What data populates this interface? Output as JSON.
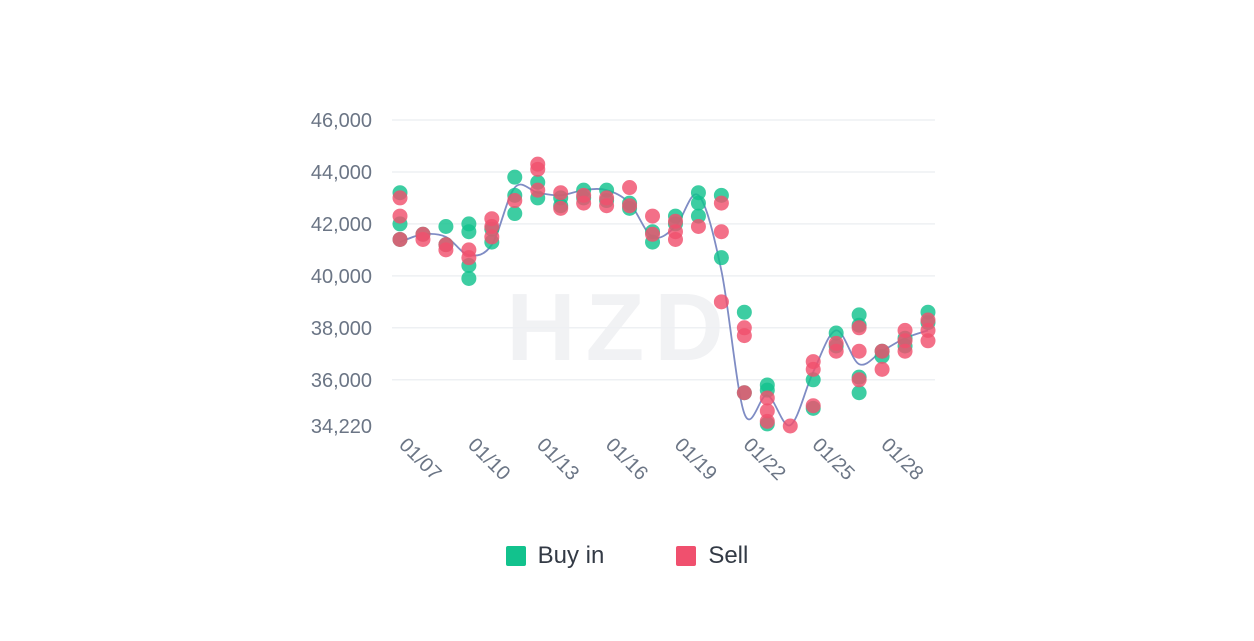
{
  "colors": {
    "buy": "#12c28d",
    "sell": "#f0506e",
    "trend": "#7f8cc4",
    "grid": "#eef0f3",
    "tick": "#6b7585"
  },
  "watermark": "HZD",
  "legend": [
    {
      "label": "Buy in",
      "color": "#12c28d"
    },
    {
      "label": "Sell",
      "color": "#f0506e"
    }
  ],
  "chart_data": {
    "type": "scatter",
    "y_ticks": [
      "46,000",
      "44,000",
      "42,000",
      "40,000",
      "38,000",
      "36,000",
      "34,220"
    ],
    "y_tick_values": [
      46000,
      44000,
      42000,
      40000,
      38000,
      36000,
      34220
    ],
    "ylim": [
      34220,
      46000
    ],
    "x_tick_labels": [
      "01/07",
      "01/10",
      "01/13",
      "01/16",
      "01/19",
      "01/22",
      "01/25",
      "01/28"
    ],
    "x_tick_days": [
      7,
      10,
      13,
      16,
      19,
      22,
      25,
      28
    ],
    "xlim": [
      7,
      30
    ],
    "grid": true,
    "legend_position": "bottom-center",
    "series": [
      {
        "name": "Buy in",
        "points": [
          [
            7,
            43200
          ],
          [
            7,
            42000
          ],
          [
            7,
            41400
          ],
          [
            8,
            41600
          ],
          [
            9,
            41900
          ],
          [
            9,
            41200
          ],
          [
            10,
            42000
          ],
          [
            10,
            41700
          ],
          [
            10,
            40400
          ],
          [
            10,
            39900
          ],
          [
            11,
            41300
          ],
          [
            11,
            41800
          ],
          [
            12,
            43800
          ],
          [
            12,
            43100
          ],
          [
            12,
            42400
          ],
          [
            13,
            43600
          ],
          [
            13,
            43000
          ],
          [
            14,
            43000
          ],
          [
            14,
            42700
          ],
          [
            15,
            43300
          ],
          [
            15,
            43000
          ],
          [
            16,
            43300
          ],
          [
            16,
            42900
          ],
          [
            17,
            42800
          ],
          [
            17,
            42600
          ],
          [
            18,
            41700
          ],
          [
            18,
            41300
          ],
          [
            19,
            42300
          ],
          [
            19,
            42000
          ],
          [
            20,
            43200
          ],
          [
            20,
            42800
          ],
          [
            20,
            42300
          ],
          [
            21,
            43100
          ],
          [
            21,
            40700
          ],
          [
            22,
            38600
          ],
          [
            22,
            35500
          ],
          [
            23,
            35800
          ],
          [
            23,
            35600
          ],
          [
            23,
            34300
          ],
          [
            25,
            36000
          ],
          [
            25,
            34900
          ],
          [
            26,
            37800
          ],
          [
            26,
            37300
          ],
          [
            27,
            38500
          ],
          [
            27,
            38100
          ],
          [
            27,
            36100
          ],
          [
            27,
            35500
          ],
          [
            28,
            36900
          ],
          [
            28,
            37100
          ],
          [
            29,
            37600
          ],
          [
            29,
            37300
          ],
          [
            30,
            38600
          ],
          [
            30,
            38200
          ]
        ]
      },
      {
        "name": "Sell",
        "points": [
          [
            7,
            43000
          ],
          [
            7,
            42300
          ],
          [
            7,
            41400
          ],
          [
            8,
            41600
          ],
          [
            8,
            41400
          ],
          [
            9,
            41200
          ],
          [
            9,
            41000
          ],
          [
            10,
            41000
          ],
          [
            10,
            40700
          ],
          [
            11,
            42200
          ],
          [
            11,
            41900
          ],
          [
            11,
            41500
          ],
          [
            12,
            42900
          ],
          [
            13,
            44300
          ],
          [
            13,
            44100
          ],
          [
            13,
            43300
          ],
          [
            14,
            43200
          ],
          [
            14,
            42600
          ],
          [
            15,
            43100
          ],
          [
            15,
            42800
          ],
          [
            16,
            43000
          ],
          [
            16,
            42700
          ],
          [
            17,
            43400
          ],
          [
            17,
            42700
          ],
          [
            18,
            42300
          ],
          [
            18,
            41600
          ],
          [
            19,
            42100
          ],
          [
            19,
            41700
          ],
          [
            19,
            41400
          ],
          [
            20,
            41900
          ],
          [
            21,
            42800
          ],
          [
            21,
            41700
          ],
          [
            21,
            39000
          ],
          [
            22,
            38000
          ],
          [
            22,
            37700
          ],
          [
            22,
            35500
          ],
          [
            23,
            35300
          ],
          [
            23,
            34800
          ],
          [
            23,
            34400
          ],
          [
            24,
            34220
          ],
          [
            25,
            36700
          ],
          [
            25,
            36400
          ],
          [
            25,
            35000
          ],
          [
            26,
            37400
          ],
          [
            26,
            37100
          ],
          [
            27,
            38000
          ],
          [
            27,
            37100
          ],
          [
            27,
            36000
          ],
          [
            28,
            37100
          ],
          [
            28,
            36400
          ],
          [
            29,
            37900
          ],
          [
            29,
            37500
          ],
          [
            29,
            37100
          ],
          [
            30,
            38300
          ],
          [
            30,
            37900
          ],
          [
            30,
            37500
          ]
        ]
      }
    ],
    "trend_line": [
      [
        7,
        41300
      ],
      [
        8,
        41600
      ],
      [
        9,
        41500
      ],
      [
        10,
        40800
      ],
      [
        11,
        41200
      ],
      [
        12,
        43400
      ],
      [
        13,
        43200
      ],
      [
        14,
        43100
      ],
      [
        15,
        43300
      ],
      [
        16,
        43300
      ],
      [
        17,
        42800
      ],
      [
        18,
        41500
      ],
      [
        19,
        41900
      ],
      [
        20,
        43100
      ],
      [
        21,
        40200
      ],
      [
        22,
        34700
      ],
      [
        23,
        35400
      ],
      [
        24,
        34250
      ],
      [
        25,
        36300
      ],
      [
        26,
        37900
      ],
      [
        27,
        36600
      ],
      [
        28,
        37100
      ],
      [
        29,
        37600
      ],
      [
        30,
        37900
      ]
    ]
  }
}
